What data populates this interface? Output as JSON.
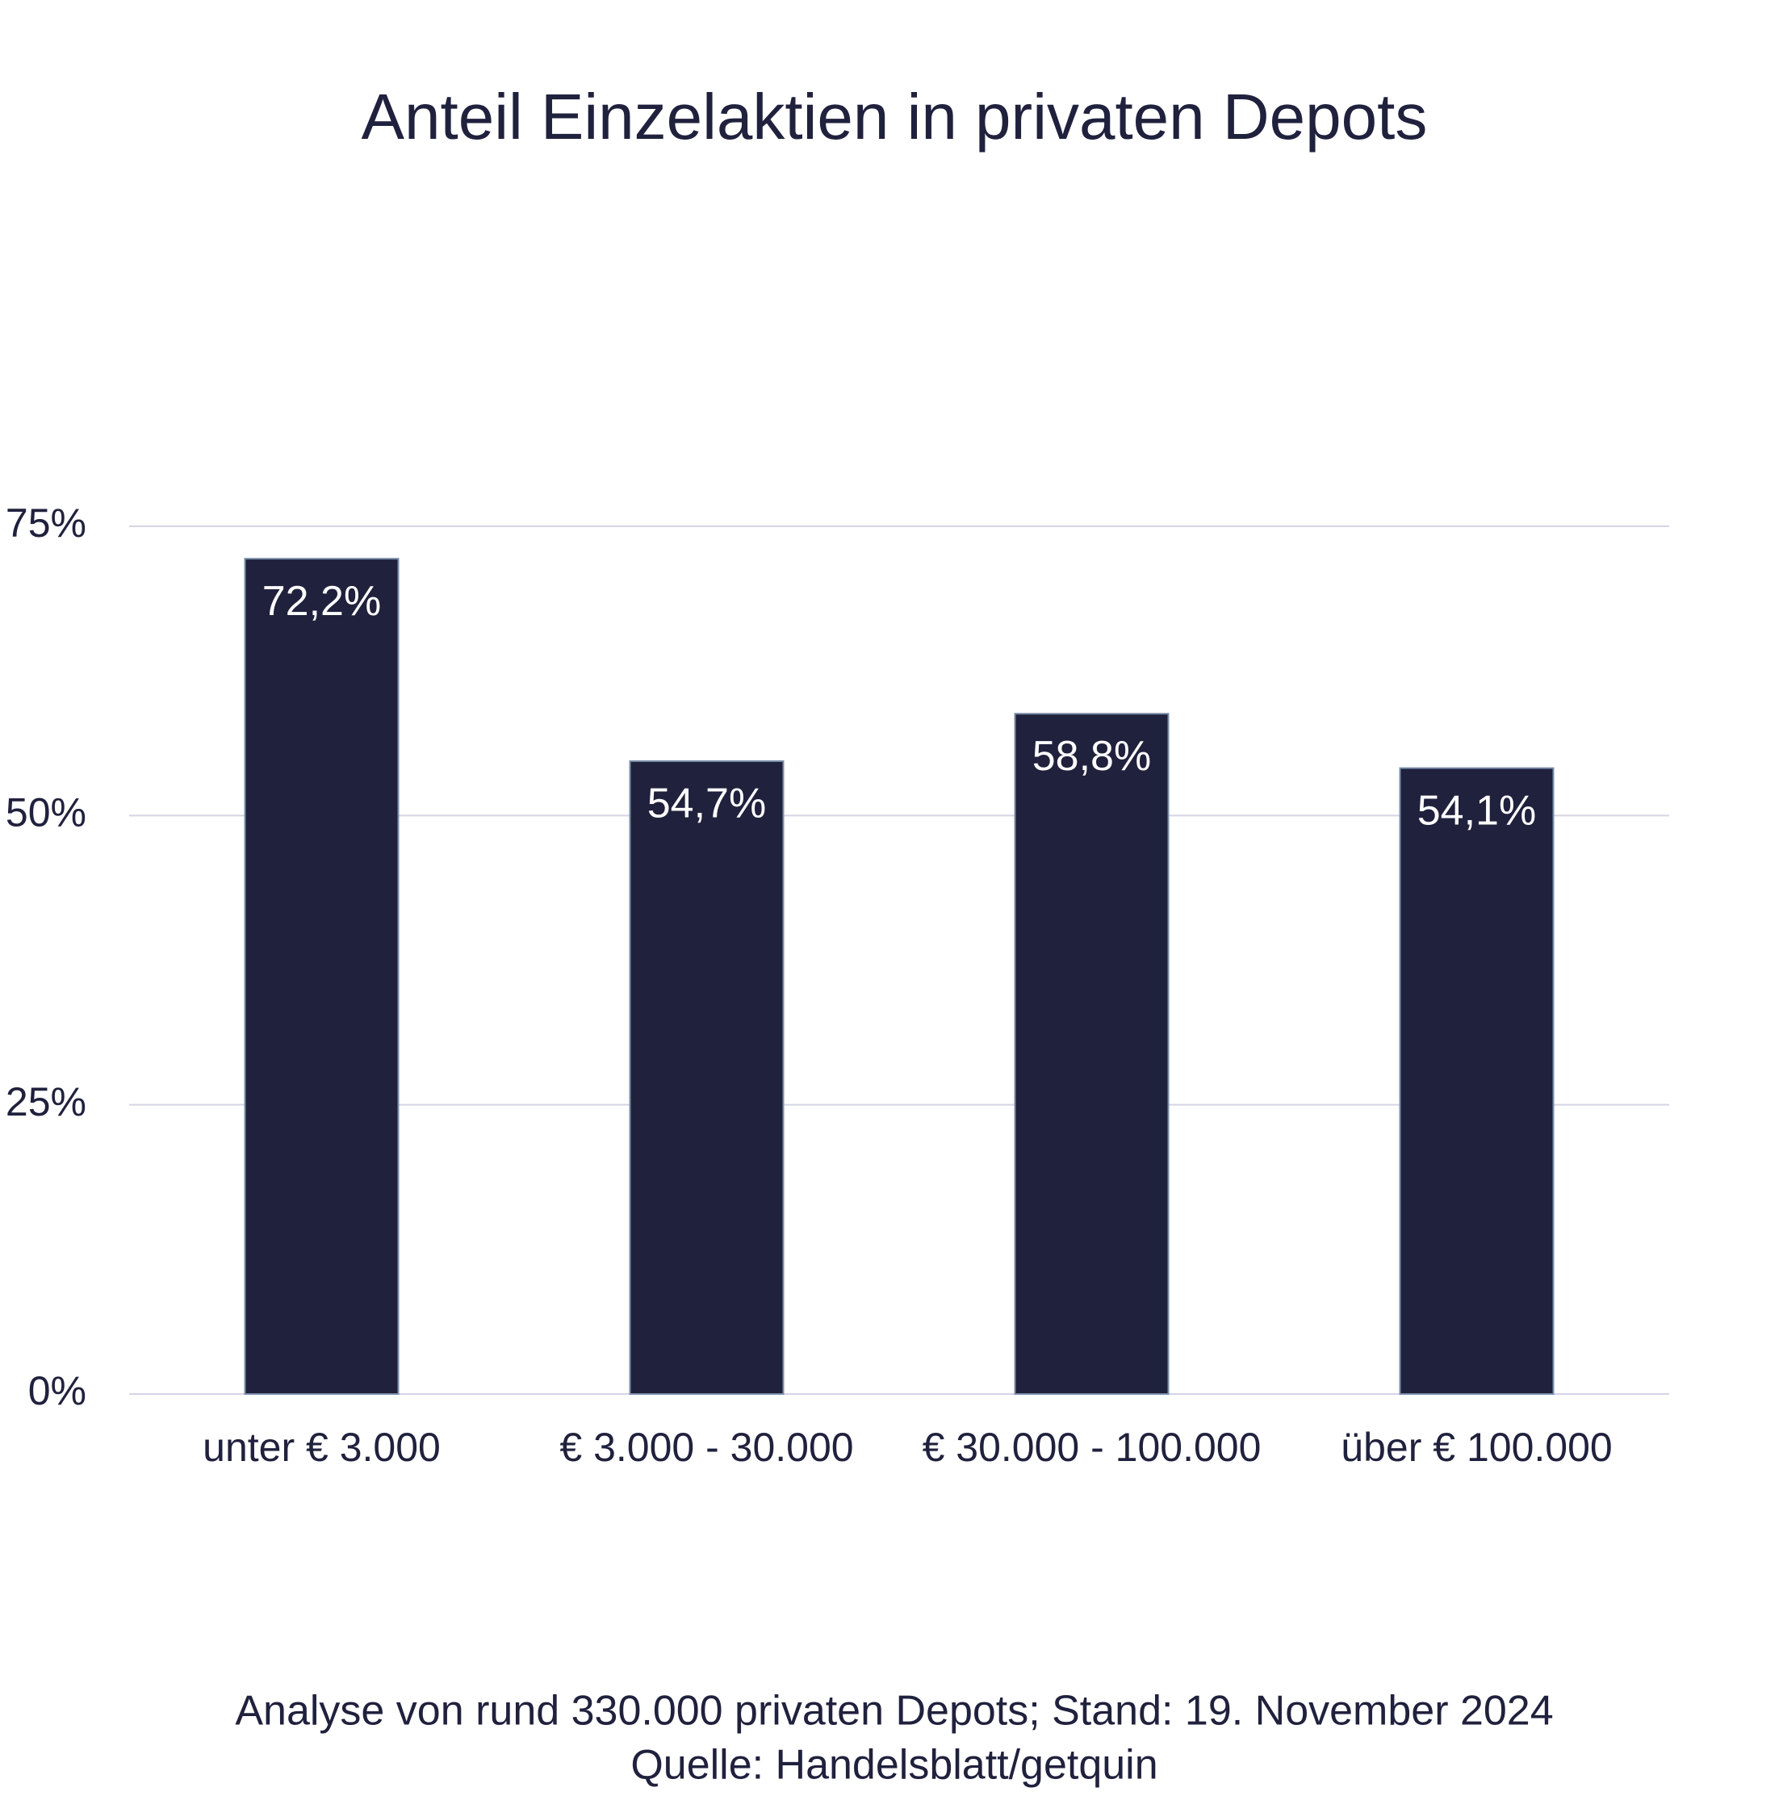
{
  "chart_data": {
    "type": "bar",
    "title": "Anteil Einzelaktien in privaten Depots",
    "categories": [
      "unter € 3.000",
      "€ 3.000 - 30.000",
      "€ 30.000 - 100.000",
      "über € 100.000"
    ],
    "values": [
      72.2,
      54.7,
      58.8,
      54.1
    ],
    "value_labels": [
      "72,2%",
      "54,7%",
      "58,8%",
      "54,1%"
    ],
    "color": "#20213d",
    "ylim": [
      0,
      75
    ],
    "yticks": [
      {
        "value": 0,
        "label": "0%"
      },
      {
        "value": 25,
        "label": "25%"
      },
      {
        "value": 50,
        "label": "50%"
      },
      {
        "value": 75,
        "label": "75%"
      }
    ],
    "grid": true,
    "annotations": [
      "Analyse von rund 330.000 privaten Depots; Stand: 19. November 2024",
      "Quelle: Handelsblatt/getquin"
    ]
  }
}
